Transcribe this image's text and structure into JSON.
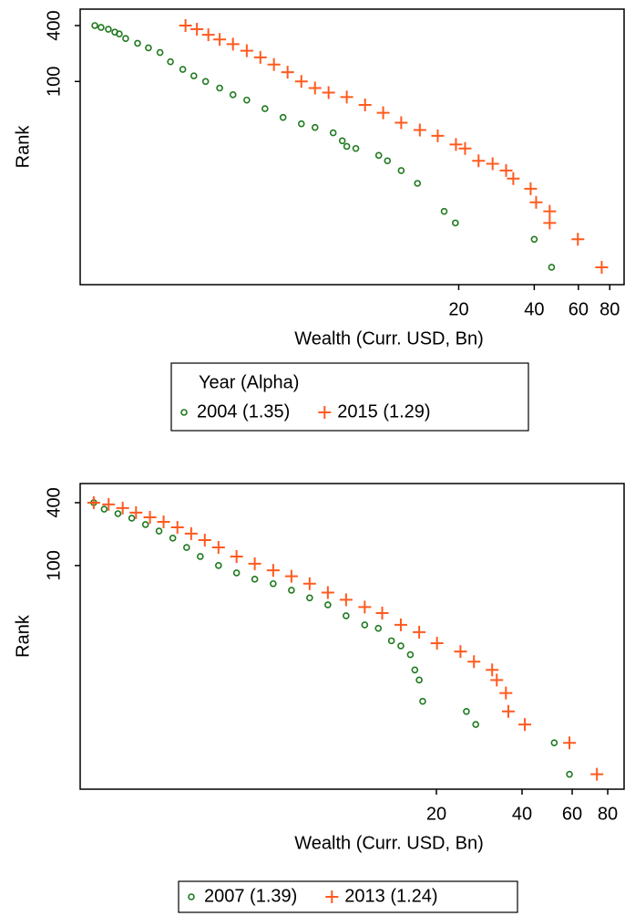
{
  "chart_data": [
    {
      "type": "scatter",
      "x_label": "Wealth (Curr. USD, Bn)",
      "y_label": "Rank",
      "legend_title": "Year (Alpha)",
      "log_x": true,
      "log_y": true,
      "xlim": [
        0.62,
        92
      ],
      "ylim": [
        0.65,
        601
      ],
      "xticks": [
        20,
        40,
        60,
        80
      ],
      "yticks": [
        100,
        400
      ],
      "series": [
        {
          "name": "2004 (1.35)",
          "color": "#1f7a1f",
          "marker": "circle",
          "x": [
            0.709,
            0.751,
            0.803,
            0.852,
            0.888,
            0.941,
            1.05,
            1.16,
            1.29,
            1.42,
            1.59,
            1.76,
            1.96,
            2.23,
            2.52,
            2.86,
            3.38,
            3.99,
            4.72,
            5.35,
            6.32,
            6.87,
            7.16,
            7.78,
            9.6,
            10.4,
            11.8,
            13.7,
            17.5,
            19.4,
            40,
            46.9
          ],
          "values": [
            400,
            382,
            365,
            340,
            325,
            290,
            258,
            230,
            205,
            163,
            135,
            115,
            100,
            85,
            72,
            63,
            51,
            41,
            35,
            32,
            28,
            23,
            20,
            19,
            16,
            14,
            11,
            8,
            4,
            3,
            2,
            1
          ]
        },
        {
          "name": "2015 (1.29)",
          "color": "#ff5a1f",
          "marker": "plus",
          "x": [
            1.63,
            1.81,
            2.01,
            2.23,
            2.52,
            2.86,
            3.24,
            3.67,
            4.16,
            4.72,
            5.35,
            6.06,
            7.16,
            8.47,
            10.0,
            11.8,
            14.0,
            16.5,
            19.5,
            21.2,
            24.0,
            27.3,
            30.9,
            33.0,
            38.7,
            40.7,
            46.1,
            46.1,
            59.7,
            74.3
          ],
          "values": [
            400,
            365,
            318,
            283,
            252,
            214,
            182,
            152,
            126,
            100,
            85,
            76,
            68,
            56,
            46,
            36,
            30,
            26,
            21,
            19,
            14,
            13,
            11,
            9,
            7,
            5,
            4,
            3,
            2,
            1
          ]
        }
      ]
    },
    {
      "type": "scatter",
      "x_label": "Wealth (Curr. USD, Bn)",
      "y_label": "Rank",
      "log_x": true,
      "log_y": true,
      "xlim": [
        1.12,
        92
      ],
      "ylim": [
        0.72,
        610
      ],
      "xticks": [
        20,
        40,
        60,
        80
      ],
      "yticks": [
        100,
        400
      ],
      "series": [
        {
          "name": "2007 (1.39)",
          "color": "#1f7a1f",
          "marker": "circle",
          "x": [
            1.25,
            1.36,
            1.52,
            1.7,
            1.9,
            2.12,
            2.37,
            2.65,
            2.96,
            3.43,
            3.97,
            4.6,
            5.34,
            6.19,
            7.17,
            8.31,
            9.63,
            11.2,
            12.5,
            13.9,
            15.0,
            16.2,
            16.8,
            17.4,
            17.9,
            25.5,
            27.5,
            51.9,
            58.7
          ],
          "values": [
            400,
            347,
            314,
            284,
            247,
            214,
            183,
            149,
            122,
            100,
            85,
            74,
            67,
            58,
            49,
            42,
            33,
            27,
            25,
            19,
            17,
            14,
            10,
            8,
            5,
            4,
            3,
            2,
            1
          ]
        },
        {
          "name": "2013 (1.24)",
          "color": "#ff5a1f",
          "marker": "plus",
          "x": [
            1.25,
            1.41,
            1.58,
            1.76,
            1.97,
            2.2,
            2.46,
            2.75,
            3.07,
            3.43,
            3.97,
            4.6,
            5.34,
            6.19,
            7.17,
            8.31,
            9.63,
            11.2,
            12.9,
            15.0,
            17.4,
            20.1,
            24.3,
            27.1,
            31.4,
            32.6,
            35.1,
            35.8,
            40.9,
            58.7,
            73.3
          ],
          "values": [
            400,
            385,
            355,
            321,
            290,
            262,
            232,
            202,
            175,
            149,
            122,
            104,
            90,
            79,
            67,
            55,
            47,
            40,
            35,
            27,
            23,
            18,
            15,
            12,
            10,
            8,
            6,
            4,
            3,
            2,
            1
          ]
        }
      ]
    }
  ]
}
